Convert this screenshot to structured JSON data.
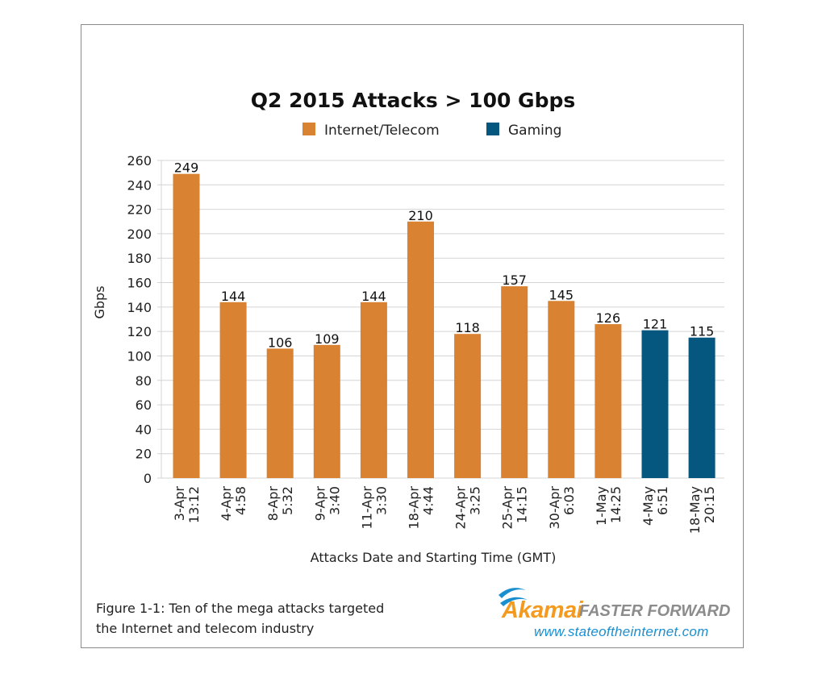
{
  "chart_data": {
    "type": "bar",
    "title": "Q2 2015 Attacks > 100 Gbps",
    "xlabel": "Attacks Date and Starting Time (GMT)",
    "ylabel": "Gbps",
    "ylim": [
      0,
      260
    ],
    "yticks": [
      0,
      20,
      40,
      60,
      80,
      100,
      120,
      140,
      160,
      180,
      200,
      220,
      240,
      260
    ],
    "grid": true,
    "legend_position": "top-center",
    "legend": [
      {
        "name": "Internet/Telecom",
        "color": "#d98232"
      },
      {
        "name": "Gaming",
        "color": "#05577f"
      }
    ],
    "categories": [
      [
        "3-Apr",
        "13:12"
      ],
      [
        "4-Apr",
        "4:58"
      ],
      [
        "8-Apr",
        "5:32"
      ],
      [
        "9-Apr",
        "3:40"
      ],
      [
        "11-Apr",
        "3:30"
      ],
      [
        "18-Apr",
        "4:44"
      ],
      [
        "24-Apr",
        "3:25"
      ],
      [
        "25-Apr",
        "14:15"
      ],
      [
        "30-Apr",
        "6:03"
      ],
      [
        "1-May",
        "14:25"
      ],
      [
        "4-May",
        "6:51"
      ],
      [
        "18-May",
        "20:15"
      ]
    ],
    "values": [
      249,
      144,
      106,
      109,
      144,
      210,
      118,
      157,
      145,
      126,
      121,
      115
    ],
    "series_index": [
      0,
      0,
      0,
      0,
      0,
      0,
      0,
      0,
      0,
      0,
      1,
      1
    ]
  },
  "caption": {
    "line1": "Figure 1-1: Ten of the mega attacks targeted",
    "line2": "the Internet and telecom industry"
  },
  "logo": {
    "brand": "Akamai",
    "tagline": "FASTER FORWARD",
    "url": "www.stateoftheinternet.com"
  }
}
